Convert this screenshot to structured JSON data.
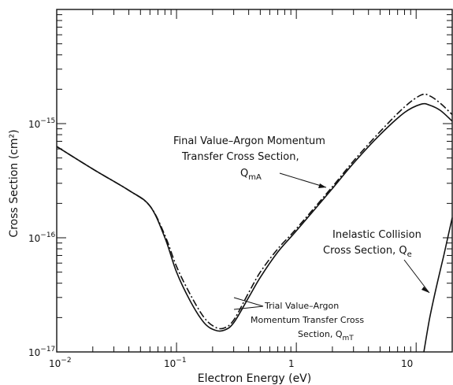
{
  "chart_data": {
    "type": "line",
    "title": "",
    "xlabel": "Electron  Energy (eV)",
    "ylabel": "Cross  Section (cm²)",
    "xscale": "log",
    "yscale": "log",
    "xlim": [
      0.01,
      20
    ],
    "ylim": [
      1e-17,
      1e-14
    ],
    "grid": false,
    "x_ticks": [
      {
        "value": 0.01,
        "base": "10",
        "exp": "−2"
      },
      {
        "value": 0.1,
        "base": "10",
        "exp": "−1"
      },
      {
        "value": 1,
        "base": "1",
        "exp": ""
      },
      {
        "value": 10,
        "base": "10",
        "exp": ""
      }
    ],
    "y_ticks": [
      {
        "value": 1e-17,
        "base": "10",
        "exp": "−17"
      },
      {
        "value": 1e-16,
        "base": "10",
        "exp": "−16"
      },
      {
        "value": 1e-15,
        "base": "10",
        "exp": "−15"
      }
    ],
    "series": [
      {
        "key": "final",
        "style": "solid",
        "x": [
          0.01,
          0.02,
          0.04,
          0.06,
          0.08,
          0.1,
          0.13,
          0.17,
          0.21,
          0.25,
          0.3,
          0.4,
          0.5,
          0.7,
          1,
          2,
          3,
          5,
          8,
          11,
          13,
          16,
          20
        ],
        "y": [
          6.3e-16,
          4e-16,
          2.6e-16,
          1.9e-16,
          1e-16,
          5e-17,
          2.8e-17,
          1.8e-17,
          1.55e-17,
          1.55e-17,
          1.8e-17,
          3e-17,
          4.5e-17,
          7.5e-17,
          1.15e-16,
          2.7e-16,
          4.5e-16,
          8e-16,
          1.25e-15,
          1.48e-15,
          1.45e-15,
          1.3e-15,
          1.05e-15
        ]
      },
      {
        "key": "trial",
        "style": "dash-dot",
        "x": [
          0.01,
          0.02,
          0.04,
          0.06,
          0.08,
          0.1,
          0.13,
          0.17,
          0.21,
          0.25,
          0.3,
          0.4,
          0.5,
          0.7,
          1,
          2,
          3,
          5,
          8,
          11,
          13,
          16,
          20
        ],
        "y": [
          6.3e-16,
          4e-16,
          2.6e-16,
          1.9e-16,
          1.05e-16,
          5.6e-17,
          3.2e-17,
          2e-17,
          1.65e-17,
          1.62e-17,
          1.9e-17,
          3.3e-17,
          5e-17,
          8e-17,
          1.2e-16,
          2.8e-16,
          4.7e-16,
          8.5e-16,
          1.4e-15,
          1.78e-15,
          1.75e-15,
          1.5e-15,
          1.2e-15
        ]
      },
      {
        "key": "inelastic",
        "style": "solid",
        "x": [
          11.6,
          13,
          15,
          17,
          20
        ],
        "y": [
          1e-17,
          2e-17,
          4e-17,
          7e-17,
          1.5e-16
        ]
      }
    ],
    "annotations": {
      "final": {
        "line1": "Final Value–Argon Momentum",
        "line2": "Transfer Cross Section,",
        "symbol": "Q",
        "sub": "mA"
      },
      "inelastic": {
        "line1": "Inelastic Collision",
        "line2": "Cross Section, Q",
        "sub": "e"
      },
      "trial": {
        "line1": "Trial Value–Argon",
        "line2": "Momentum Transfer Cross",
        "line3": "Section, Q",
        "sub": "mT"
      }
    }
  }
}
